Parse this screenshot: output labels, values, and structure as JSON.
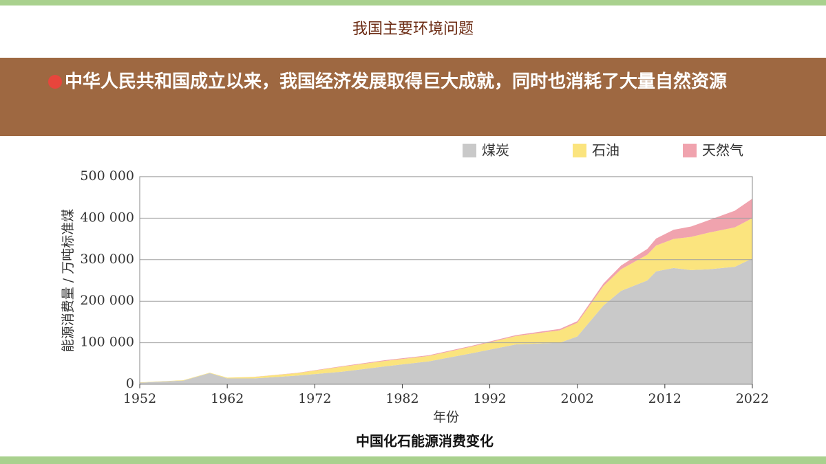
{
  "slide": {
    "header": "我国主要环境问题",
    "banner": "中华人民共和国成立以来，我国经济发展取得巨大成就，同时也消耗了大量自然资源"
  },
  "chart_data": {
    "type": "stacked-area",
    "caption": "中国化石能源消费变化",
    "x_label": "年份",
    "y_label": "能源消费量 / 万吨标准煤",
    "x": [
      1952,
      1957,
      1960,
      1962,
      1965,
      1970,
      1975,
      1980,
      1985,
      1990,
      1995,
      2000,
      2002,
      2005,
      2007,
      2010,
      2011,
      2013,
      2015,
      2017,
      2020,
      2022
    ],
    "series": [
      {
        "name": "煤炭",
        "color": "#c9c9c9",
        "values": [
          4000,
          9000,
          27000,
          14000,
          14000,
          21000,
          30000,
          43000,
          55000,
          75000,
          96000,
          100000,
          115000,
          190000,
          225000,
          250000,
          272000,
          280000,
          275000,
          277000,
          283000,
          303000
        ]
      },
      {
        "name": "石油",
        "color": "#fbe47e",
        "values": [
          500,
          1000,
          1000,
          2000,
          3500,
          6000,
          12000,
          13000,
          13000,
          16000,
          20000,
          30000,
          33000,
          47000,
          52000,
          62000,
          62000,
          70000,
          80000,
          88000,
          95000,
          97000
        ]
      },
      {
        "name": "天然气",
        "color": "#f0a3ae",
        "values": [
          0,
          0,
          0,
          0,
          300,
          500,
          1200,
          2000,
          1700,
          2000,
          2400,
          3300,
          4000,
          6000,
          9000,
          14000,
          17000,
          22000,
          25000,
          30000,
          40000,
          47000
        ]
      }
    ],
    "xlim": [
      1952,
      2022
    ],
    "xticks": [
      1952,
      1962,
      1972,
      1982,
      1992,
      2002,
      2012,
      2022
    ],
    "ylim": [
      0,
      500000
    ],
    "yticks": [
      0,
      {
        "value": 100000,
        "label": "100 000"
      },
      {
        "value": 200000,
        "label": "200 000"
      },
      {
        "value": 300000,
        "label": "300 000"
      },
      {
        "value": 400000,
        "label": "400 000"
      },
      {
        "value": 500000,
        "label": "500 000"
      }
    ],
    "grid": true,
    "legend": "top-right"
  }
}
